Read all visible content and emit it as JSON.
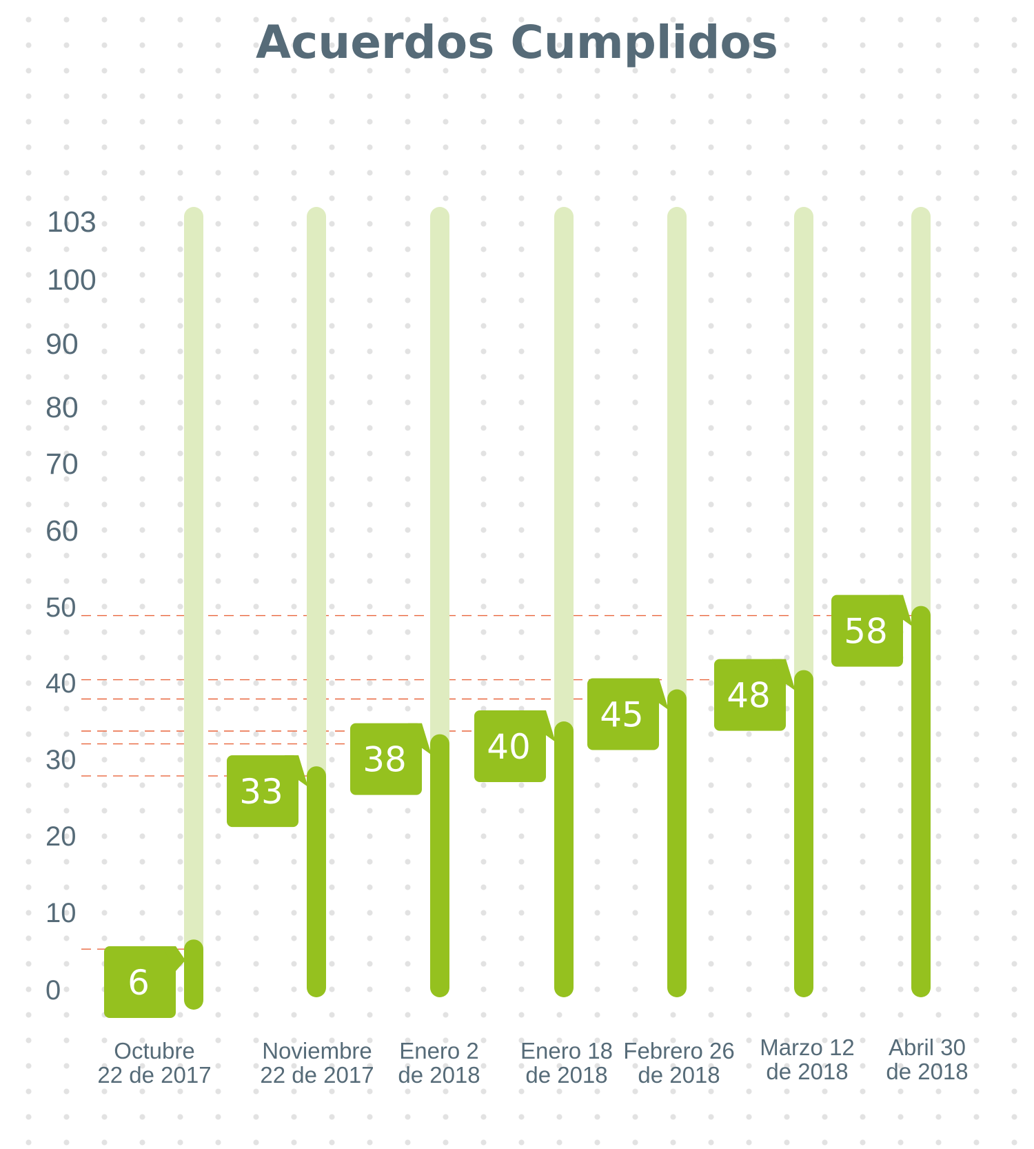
{
  "chart_data": {
    "type": "bar",
    "title": "Acuerdos Cumplidos",
    "xlabel": "",
    "ylabel": "",
    "ylim": [
      0,
      103
    ],
    "yticks": [
      0,
      10,
      20,
      30,
      40,
      50,
      60,
      70,
      80,
      90,
      100,
      103
    ],
    "categories": [
      [
        "Octubre",
        "22 de 2017"
      ],
      [
        "Noviembre",
        "22 de 2017"
      ],
      [
        "Enero 2",
        "de 2018"
      ],
      [
        "Enero 18",
        "de 2018"
      ],
      [
        "Febrero 26",
        "de 2018"
      ],
      [
        "Marzo 12",
        "de 2018"
      ],
      [
        "Abril 30",
        "de 2018"
      ]
    ],
    "values": [
      6,
      33,
      38,
      40,
      45,
      48,
      58
    ],
    "total": 103,
    "grid": false,
    "legend": "none",
    "colors": {
      "bar": "#95c11f",
      "track": "#dfecc0",
      "title": "#566b78",
      "axis_text": "#566b78",
      "reference_line": "#e8643c",
      "label_text": "#ffffff"
    }
  }
}
